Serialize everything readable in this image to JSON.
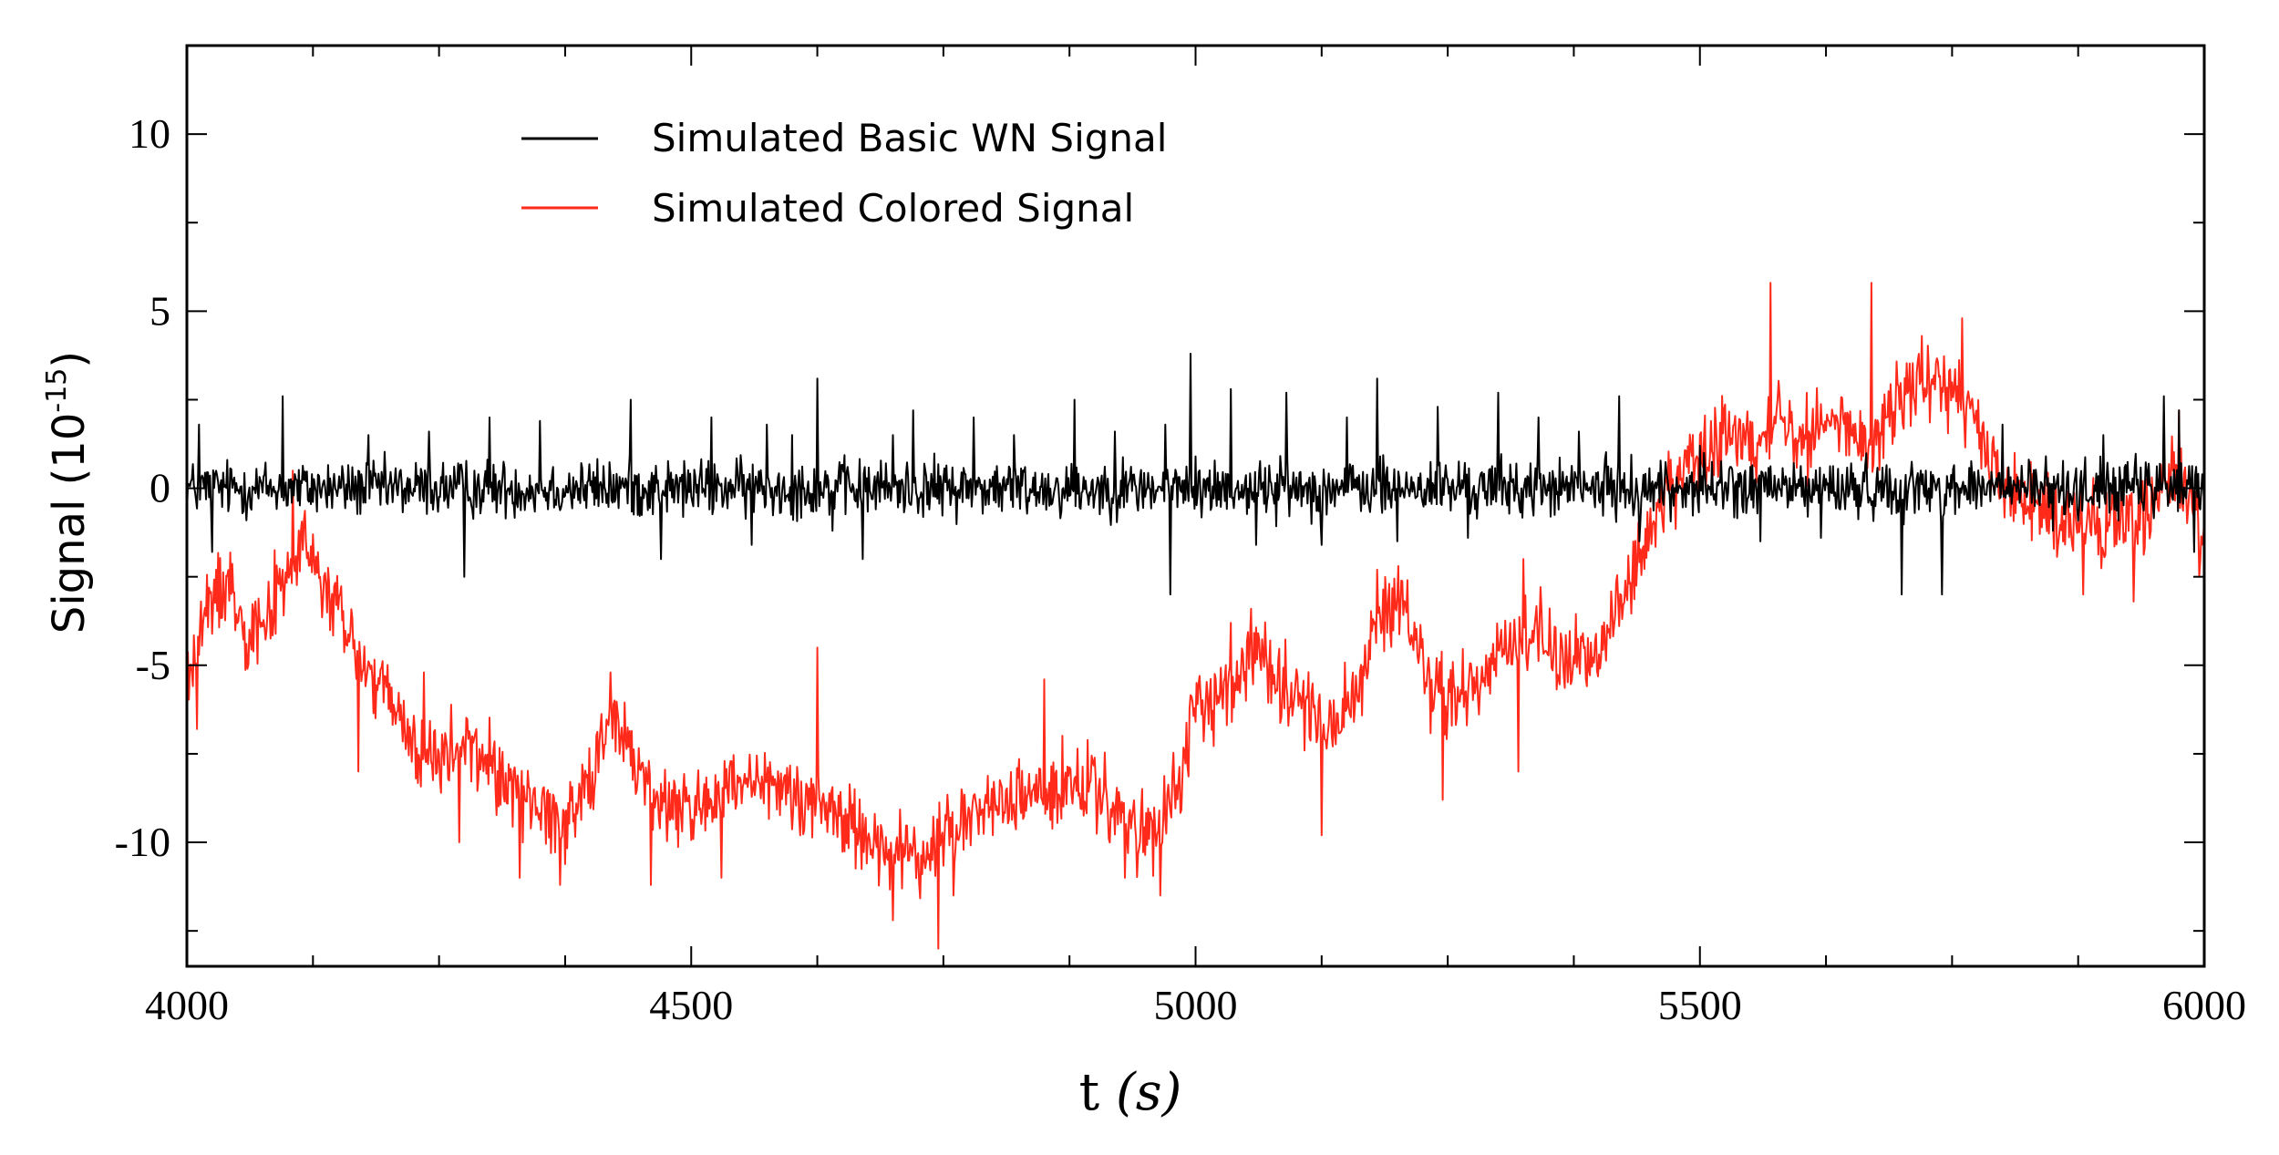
{
  "chart_data": {
    "type": "line",
    "title": "",
    "xlabel": "t (s)",
    "xlabel_parts": {
      "prefix": "t ",
      "var": "(s)"
    },
    "ylabel": "Signal (10-15)",
    "ylabel_parts": {
      "base": "Signal (10",
      "exp": "-15",
      "close": ")"
    },
    "xlim": [
      4000,
      6000
    ],
    "ylim": [
      -13.5,
      12.5
    ],
    "x_ticks": [
      4000,
      4500,
      5000,
      5500,
      6000
    ],
    "x_tick_labels": [
      "4000",
      "4500",
      "5000",
      "5500",
      "6000"
    ],
    "x_minor_step": 125,
    "y_ticks": [
      -10,
      -5,
      0,
      5,
      10
    ],
    "y_tick_labels": [
      "-10",
      "-5",
      "0",
      "5",
      "10"
    ],
    "y_minor_step": 2.5,
    "grid": false,
    "legend_position": "top-left",
    "series": [
      {
        "name": "Simulated Basic WN Signal",
        "color": "#000000",
        "baseline": [
          [
            4000,
            0
          ],
          [
            6000,
            0
          ]
        ],
        "noise_amplitude": 0.8,
        "spikes": [
          [
            4012,
            1.8
          ],
          [
            4025,
            -1.8
          ],
          [
            4095,
            2.6
          ],
          [
            4105,
            0.2
          ],
          [
            4180,
            1.5
          ],
          [
            4240,
            1.6
          ],
          [
            4275,
            -2.5
          ],
          [
            4300,
            2.0
          ],
          [
            4350,
            1.9
          ],
          [
            4440,
            2.5
          ],
          [
            4470,
            -2.0
          ],
          [
            4520,
            2.0
          ],
          [
            4560,
            -1.6
          ],
          [
            4575,
            1.8
          ],
          [
            4600,
            1.5
          ],
          [
            4625,
            3.1
          ],
          [
            4640,
            -1.2
          ],
          [
            4670,
            -2.0
          ],
          [
            4700,
            1.5
          ],
          [
            4720,
            2.2
          ],
          [
            4780,
            2.0
          ],
          [
            4820,
            1.5
          ],
          [
            4880,
            2.5
          ],
          [
            4920,
            1.6
          ],
          [
            4970,
            1.8
          ],
          [
            4975,
            -3.0
          ],
          [
            4995,
            3.8
          ],
          [
            5035,
            2.8
          ],
          [
            5060,
            -1.6
          ],
          [
            5090,
            2.7
          ],
          [
            5125,
            -1.6
          ],
          [
            5150,
            2.0
          ],
          [
            5180,
            3.1
          ],
          [
            5200,
            -1.5
          ],
          [
            5240,
            2.3
          ],
          [
            5270,
            -1.4
          ],
          [
            5300,
            2.7
          ],
          [
            5340,
            2.0
          ],
          [
            5380,
            1.6
          ],
          [
            5420,
            2.6
          ],
          [
            5440,
            -1.5
          ],
          [
            5500,
            1.2
          ],
          [
            5560,
            -1.5
          ],
          [
            5620,
            -1.4
          ],
          [
            5700,
            -3.0
          ],
          [
            5740,
            -3.0
          ],
          [
            5800,
            1.8
          ],
          [
            5850,
            -1.2
          ],
          [
            5900,
            1.5
          ],
          [
            5960,
            2.6
          ],
          [
            5975,
            2.2
          ],
          [
            5990,
            -1.8
          ]
        ]
      },
      {
        "name": "Simulated Colored Signal",
        "color": "#ff2a1a",
        "baseline": [
          [
            4000,
            -5.5
          ],
          [
            4020,
            -3.5
          ],
          [
            4040,
            -2.5
          ],
          [
            4060,
            -4.0
          ],
          [
            4080,
            -3.5
          ],
          [
            4100,
            -2.5
          ],
          [
            4115,
            -1.5
          ],
          [
            4130,
            -2.5
          ],
          [
            4150,
            -3.5
          ],
          [
            4175,
            -5.0
          ],
          [
            4200,
            -6.0
          ],
          [
            4225,
            -7.3
          ],
          [
            4250,
            -7.8
          ],
          [
            4275,
            -7.2
          ],
          [
            4300,
            -7.8
          ],
          [
            4325,
            -8.5
          ],
          [
            4350,
            -9.0
          ],
          [
            4375,
            -9.5
          ],
          [
            4400,
            -8.0
          ],
          [
            4420,
            -6.5
          ],
          [
            4440,
            -7.5
          ],
          [
            4470,
            -9.0
          ],
          [
            4500,
            -9.0
          ],
          [
            4550,
            -8.5
          ],
          [
            4600,
            -8.5
          ],
          [
            4650,
            -9.3
          ],
          [
            4700,
            -10.3
          ],
          [
            4730,
            -10.5
          ],
          [
            4760,
            -9.5
          ],
          [
            4800,
            -9.0
          ],
          [
            4850,
            -8.5
          ],
          [
            4900,
            -8.5
          ],
          [
            4930,
            -9.5
          ],
          [
            4960,
            -10.0
          ],
          [
            4980,
            -8.5
          ],
          [
            5000,
            -6.5
          ],
          [
            5030,
            -5.5
          ],
          [
            5060,
            -4.5
          ],
          [
            5090,
            -5.5
          ],
          [
            5120,
            -6.5
          ],
          [
            5150,
            -6.5
          ],
          [
            5180,
            -4.0
          ],
          [
            5200,
            -3.0
          ],
          [
            5230,
            -5.5
          ],
          [
            5260,
            -6.0
          ],
          [
            5290,
            -5.0
          ],
          [
            5320,
            -4.0
          ],
          [
            5350,
            -4.5
          ],
          [
            5380,
            -5.0
          ],
          [
            5410,
            -4.0
          ],
          [
            5440,
            -2.0
          ],
          [
            5470,
            0.0
          ],
          [
            5500,
            1.0
          ],
          [
            5530,
            1.5
          ],
          [
            5560,
            1.0
          ],
          [
            5580,
            2.5
          ],
          [
            5600,
            1.5
          ],
          [
            5630,
            1.8
          ],
          [
            5650,
            1.8
          ],
          [
            5670,
            1.0
          ],
          [
            5700,
            2.8
          ],
          [
            5730,
            3.0
          ],
          [
            5760,
            2.5
          ],
          [
            5790,
            0.5
          ],
          [
            5820,
            -0.5
          ],
          [
            5860,
            -1.0
          ],
          [
            5900,
            -1.0
          ],
          [
            5950,
            -0.5
          ],
          [
            5970,
            0.5
          ],
          [
            6000,
            -1.0
          ]
        ],
        "noise_amplitude": 1.1,
        "spikes": [
          [
            4010,
            -6.8
          ],
          [
            4105,
            0.5
          ],
          [
            4170,
            -8.0
          ],
          [
            4235,
            -5.2
          ],
          [
            4270,
            -10.0
          ],
          [
            4330,
            -11.0
          ],
          [
            4370,
            -11.2
          ],
          [
            4420,
            -5.2
          ],
          [
            4460,
            -11.2
          ],
          [
            4530,
            -11.0
          ],
          [
            4625,
            -4.5
          ],
          [
            4700,
            -12.2
          ],
          [
            4745,
            -13.0
          ],
          [
            4760,
            -11.5
          ],
          [
            4850,
            -5.4
          ],
          [
            4930,
            -11.0
          ],
          [
            4965,
            -11.5
          ],
          [
            5035,
            -3.8
          ],
          [
            5125,
            -9.8
          ],
          [
            5180,
            -2.3
          ],
          [
            5245,
            -8.8
          ],
          [
            5320,
            -8.0
          ],
          [
            5325,
            -2.0
          ],
          [
            5570,
            5.8
          ],
          [
            5670,
            5.8
          ],
          [
            5720,
            4.3
          ],
          [
            5760,
            4.8
          ],
          [
            5880,
            -3.0
          ],
          [
            5930,
            -3.2
          ],
          [
            5975,
            2.2
          ],
          [
            5995,
            -2.5
          ]
        ]
      }
    ]
  }
}
